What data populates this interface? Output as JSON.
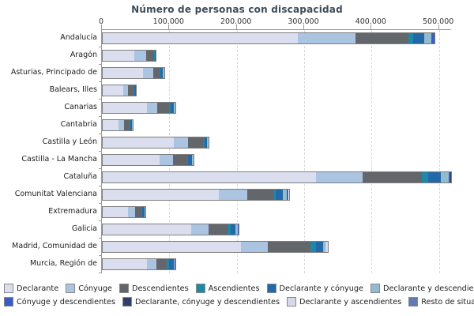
{
  "title": "Número de personas con discapacidad",
  "chart_data": {
    "type": "bar",
    "orientation": "horizontal",
    "stacked": true,
    "title": "Número de personas con discapacidad",
    "xlim": [
      0,
      518000
    ],
    "x_tick_labels": [
      "0",
      "100.000",
      "200.000",
      "300.000",
      "400.000",
      "500.000"
    ],
    "x_tick_values": [
      0,
      100000,
      200000,
      300000,
      400000,
      500000
    ],
    "grid": "vertical-dashed",
    "legend_position": "bottom",
    "legend_rows": [
      [
        0,
        1,
        2,
        3,
        4,
        5
      ],
      [
        6,
        7,
        8,
        9
      ]
    ],
    "categories": [
      "Andalucía",
      "Aragón",
      "Asturias, Principado de",
      "Balears, Illes",
      "Canarias",
      "Cantabria",
      "Castilla y León",
      "Castilla - La Mancha",
      "Cataluña",
      "Comunitat Valenciana",
      "Extremadura",
      "Galicia",
      "Madrid, Comunidad de",
      "Murcia, Región de"
    ],
    "series": [
      {
        "name": "Declarante",
        "color": "#dbdeee",
        "values": [
          290000,
          47000,
          60000,
          30000,
          66000,
          24000,
          106000,
          84000,
          317000,
          172000,
          38000,
          131000,
          205000,
          66000
        ]
      },
      {
        "name": "Cónyuge",
        "color": "#abc4e2",
        "values": [
          85000,
          17000,
          15000,
          7000,
          15000,
          8000,
          21000,
          20000,
          68000,
          42000,
          10000,
          26000,
          40000,
          14000
        ]
      },
      {
        "name": "Descendientes",
        "color": "#63666b",
        "values": [
          79000,
          12000,
          9000,
          9000,
          18000,
          8000,
          22000,
          21000,
          89000,
          40000,
          10000,
          28000,
          63000,
          15000
        ]
      },
      {
        "name": "Ascendientes",
        "color": "#1e89a6",
        "values": [
          7000,
          1000,
          1000,
          1000,
          2000,
          1000,
          2000,
          2000,
          9000,
          3000,
          1000,
          5000,
          8000,
          3000
        ]
      },
      {
        "name": "Declarante y cónyuge",
        "color": "#2369a9",
        "values": [
          16000,
          1000,
          4000,
          2000,
          4000,
          3000,
          4000,
          5000,
          19000,
          10000,
          3000,
          7000,
          11000,
          7000
        ]
      },
      {
        "name": "Declarante y descendientes",
        "color": "#92bcce",
        "values": [
          11000,
          0,
          2000,
          0,
          3000,
          1000,
          2000,
          3000,
          11000,
          6000,
          1000,
          3000,
          4000,
          2000
        ]
      },
      {
        "name": "Cónyuge y descendientes",
        "color": "#3a5dc4",
        "values": [
          4000,
          0,
          0,
          0,
          0,
          0,
          0,
          0,
          3000,
          3000,
          0,
          2000,
          0,
          1000
        ]
      },
      {
        "name": "Declarante, cónyuge y descendientes",
        "color": "#2e3f6e",
        "values": [
          0,
          0,
          0,
          0,
          0,
          0,
          0,
          0,
          1000,
          0,
          0,
          0,
          0,
          0
        ]
      },
      {
        "name": "Declarante y ascendientes",
        "color": "#d6d9e8",
        "values": [
          0,
          0,
          0,
          0,
          0,
          0,
          0,
          0,
          0,
          0,
          0,
          0,
          3000,
          0
        ]
      },
      {
        "name": "Resto de situaciones",
        "color": "#5c7cb8",
        "values": [
          0,
          0,
          0,
          0,
          0,
          0,
          0,
          0,
          0,
          0,
          0,
          0,
          0,
          0
        ]
      }
    ]
  },
  "layout_colors": {
    "bar_border": "#7e7e7e",
    "axis": "#999999",
    "gridline": "#d9d9d9",
    "title_text": "#3e4c59"
  }
}
